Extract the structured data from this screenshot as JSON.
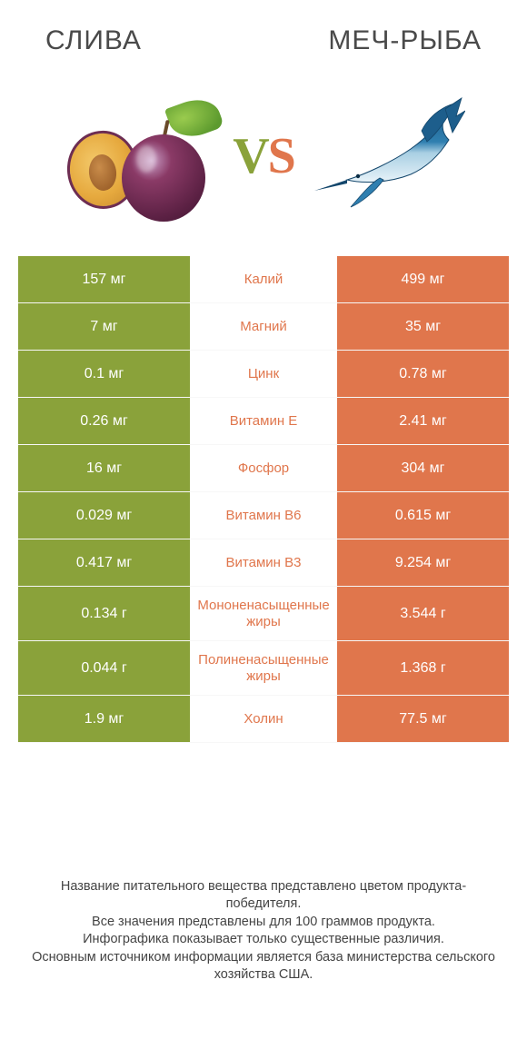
{
  "titles": {
    "left": "СЛИВА",
    "right": "МЕЧ-РЫБА"
  },
  "vs": {
    "v": "V",
    "s": "S"
  },
  "colors": {
    "left_bg": "#8aa23a",
    "right_bg": "#e0764c",
    "nutrient_text": "#e0764c",
    "value_text": "#ffffff",
    "footer_text": "#444444",
    "title_text": "#4a4a4a",
    "background": "#ffffff"
  },
  "comparison": {
    "left_wins_color": "#8aa23a",
    "right_wins_color": "#e0764c",
    "rows": [
      {
        "nutrient": "Калий",
        "left": "157 мг",
        "right": "499 мг",
        "winner": "right",
        "tall": false
      },
      {
        "nutrient": "Магний",
        "left": "7 мг",
        "right": "35 мг",
        "winner": "right",
        "tall": false
      },
      {
        "nutrient": "Цинк",
        "left": "0.1 мг",
        "right": "0.78 мг",
        "winner": "right",
        "tall": false
      },
      {
        "nutrient": "Витамин E",
        "left": "0.26 мг",
        "right": "2.41 мг",
        "winner": "right",
        "tall": false
      },
      {
        "nutrient": "Фосфор",
        "left": "16 мг",
        "right": "304 мг",
        "winner": "right",
        "tall": false
      },
      {
        "nutrient": "Витамин B6",
        "left": "0.029 мг",
        "right": "0.615 мг",
        "winner": "right",
        "tall": false
      },
      {
        "nutrient": "Витамин B3",
        "left": "0.417 мг",
        "right": "9.254 мг",
        "winner": "right",
        "tall": false
      },
      {
        "nutrient": "Мононенасыщенные жиры",
        "left": "0.134 г",
        "right": "3.544 г",
        "winner": "right",
        "tall": true
      },
      {
        "nutrient": "Полиненасыщенные жиры",
        "left": "0.044 г",
        "right": "1.368 г",
        "winner": "right",
        "tall": true
      },
      {
        "nutrient": "Холин",
        "left": "1.9 мг",
        "right": "77.5 мг",
        "winner": "right",
        "tall": false
      }
    ]
  },
  "footer": {
    "line1": "Название питательного вещества представлено цветом продукта-победителя.",
    "line2": "Все значения представлены для 100 граммов продукта.",
    "line3": "Инфографика показывает только существенные различия.",
    "line4": "Основным источником информации является база министерства сельского хозяйства США."
  }
}
